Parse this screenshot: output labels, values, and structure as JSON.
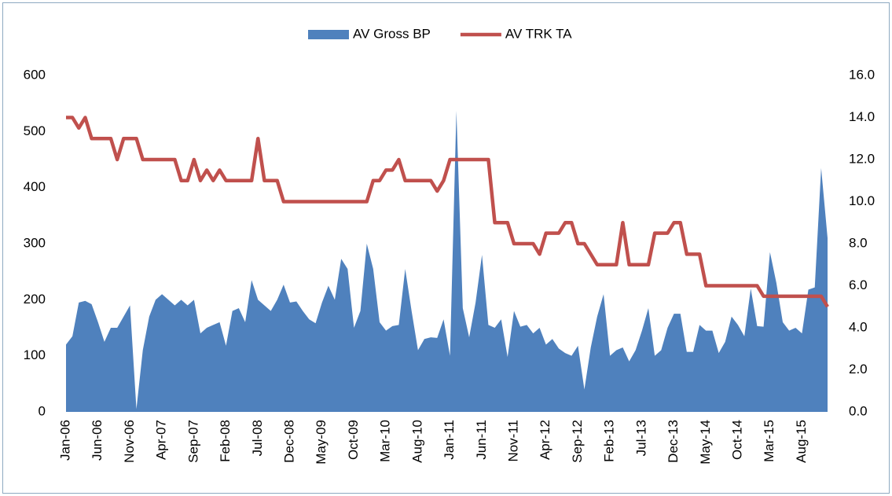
{
  "chart_data": {
    "type": "area-line",
    "categories": [
      "Jan-06",
      null,
      null,
      null,
      null,
      "Jun-06",
      null,
      null,
      null,
      null,
      "Nov-06",
      null,
      null,
      null,
      null,
      "Apr-07",
      null,
      null,
      null,
      null,
      "Sep-07",
      null,
      null,
      null,
      null,
      "Feb-08",
      null,
      null,
      null,
      null,
      "Jul-08",
      null,
      null,
      null,
      null,
      "Dec-08",
      null,
      null,
      null,
      null,
      "May-09",
      null,
      null,
      null,
      null,
      "Oct-09",
      null,
      null,
      null,
      null,
      "Mar-10",
      null,
      null,
      null,
      null,
      "Aug-10",
      null,
      null,
      null,
      null,
      "Jan-11",
      null,
      null,
      null,
      null,
      "Jun-11",
      null,
      null,
      null,
      null,
      "Nov-11",
      null,
      null,
      null,
      null,
      "Apr-12",
      null,
      null,
      null,
      null,
      "Sep-12",
      null,
      null,
      null,
      null,
      "Feb-13",
      null,
      null,
      null,
      null,
      "Jul-13",
      null,
      null,
      null,
      null,
      "Dec-13",
      null,
      null,
      null,
      null,
      "May-14",
      null,
      null,
      null,
      null,
      "Oct-14",
      null,
      null,
      null,
      null,
      "Mar-15",
      null,
      null,
      null,
      null,
      "Aug-15",
      null,
      null,
      null,
      null
    ],
    "series": [
      {
        "name": "AV Gross BP",
        "type": "area",
        "color": "#4f81bd",
        "axis": "y",
        "values": [
          120,
          135,
          195,
          198,
          192,
          160,
          125,
          150,
          150,
          170,
          190,
          5,
          110,
          170,
          200,
          210,
          200,
          190,
          200,
          190,
          200,
          140,
          150,
          155,
          160,
          118,
          180,
          185,
          160,
          235,
          200,
          190,
          180,
          200,
          227,
          195,
          197,
          180,
          165,
          158,
          195,
          225,
          200,
          273,
          255,
          150,
          180,
          300,
          255,
          160,
          145,
          153,
          155,
          255,
          180,
          110,
          130,
          133,
          132,
          165,
          100,
          537,
          185,
          133,
          195,
          280,
          155,
          150,
          165,
          98,
          180,
          152,
          155,
          140,
          150,
          120,
          130,
          113,
          105,
          100,
          118,
          40,
          115,
          170,
          210,
          100,
          110,
          115,
          90,
          110,
          145,
          185,
          100,
          110,
          150,
          175,
          175,
          107,
          107,
          155,
          145,
          145,
          105,
          125,
          170,
          155,
          135,
          220,
          153,
          152,
          285,
          230,
          160,
          145,
          150,
          140,
          218,
          222,
          435,
          310
        ]
      },
      {
        "name": "AV TRK TA",
        "type": "line",
        "color": "#c0504d",
        "axis": "y2",
        "values": [
          14,
          14,
          13.5,
          14,
          13,
          13,
          13,
          13,
          12,
          13,
          13,
          13,
          12,
          12,
          12,
          12,
          12,
          12,
          11,
          11,
          12,
          11,
          11.5,
          11,
          11.5,
          11,
          11,
          11,
          11,
          11,
          13,
          11,
          11,
          11,
          10,
          10,
          10,
          10,
          10,
          10,
          10,
          10,
          10,
          10,
          10,
          10,
          10,
          10,
          11,
          11,
          11.5,
          11.5,
          12,
          11,
          11,
          11,
          11,
          11,
          10.5,
          11,
          12,
          12,
          12,
          12,
          12,
          12,
          12,
          9,
          9,
          9,
          8,
          8,
          8,
          8,
          7.5,
          8.5,
          8.5,
          8.5,
          9,
          9,
          8,
          8,
          7.5,
          7,
          7,
          7,
          7,
          9,
          7,
          7,
          7,
          7,
          8.5,
          8.5,
          8.5,
          9,
          9,
          7.5,
          7.5,
          7.5,
          6,
          6,
          6,
          6,
          6,
          6,
          6,
          6,
          6,
          5.5,
          5.5,
          5.5,
          5.5,
          5.5,
          5.5,
          5.5,
          5.5,
          5.5,
          5.5,
          5
        ]
      }
    ],
    "ylim": [
      0,
      600
    ],
    "yticks": [
      0,
      100,
      200,
      300,
      400,
      500,
      600
    ],
    "y2lim": [
      0,
      16
    ],
    "y2ticks": [
      {
        "value": 0,
        "label": "0.0"
      },
      {
        "value": 2,
        "label": "2.0"
      },
      {
        "value": 4,
        "label": "4.0"
      },
      {
        "value": 6,
        "label": "6.0"
      },
      {
        "value": 8,
        "label": "8.0"
      },
      {
        "value": 10,
        "label": "10.0"
      },
      {
        "value": 12,
        "label": "12.0"
      },
      {
        "value": 14,
        "label": "14.0"
      },
      {
        "value": 16,
        "label": "16.0"
      }
    ],
    "legend": "top"
  }
}
